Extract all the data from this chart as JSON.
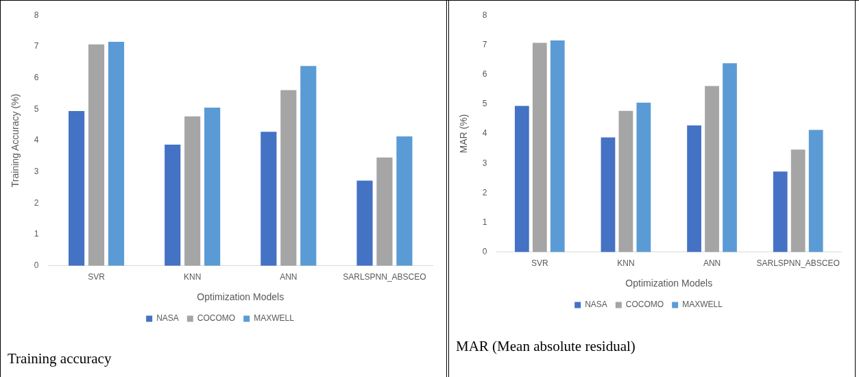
{
  "chart_data": [
    {
      "type": "bar",
      "xlabel": "Optimization Models",
      "ylabel": "Training Accuracy (%)",
      "categories": [
        "SVR",
        "KNN",
        "ANN",
        "SARLSPNN_ABSCEO"
      ],
      "series": [
        {
          "name": "NASA",
          "color": "#4472c4",
          "values": [
            4.94,
            3.87,
            4.28,
            2.72
          ]
        },
        {
          "name": "COCOMO",
          "color": "#a5a5a5",
          "values": [
            7.07,
            4.77,
            5.61,
            3.46
          ]
        },
        {
          "name": "MAXWELL",
          "color": "#5b9bd5",
          "values": [
            7.15,
            5.05,
            6.38,
            4.13
          ]
        }
      ],
      "ylim": [
        0,
        8
      ],
      "yticks": [
        0,
        1,
        2,
        3,
        4,
        5,
        6,
        7,
        8
      ],
      "grid": false,
      "legend": "bottom",
      "annotations": [
        "Training accuracy"
      ]
    },
    {
      "type": "bar",
      "xlabel": "Optimization Models",
      "ylabel": "MAR (%)",
      "categories": [
        "SVR",
        "KNN",
        "ANN",
        "SARLSPNN_ABSCEO"
      ],
      "series": [
        {
          "name": "NASA",
          "color": "#4472c4",
          "values": [
            4.94,
            3.87,
            4.28,
            2.72
          ]
        },
        {
          "name": "COCOMO",
          "color": "#a5a5a5",
          "values": [
            7.07,
            4.77,
            5.61,
            3.46
          ]
        },
        {
          "name": "MAXWELL",
          "color": "#5b9bd5",
          "values": [
            7.15,
            5.05,
            6.38,
            4.13
          ]
        }
      ],
      "ylim": [
        0,
        8
      ],
      "yticks": [
        0,
        1,
        2,
        3,
        4,
        5,
        6,
        7,
        8
      ],
      "grid": false,
      "legend": "bottom",
      "annotations": [
        "MAR (Mean absolute residual)"
      ]
    }
  ]
}
